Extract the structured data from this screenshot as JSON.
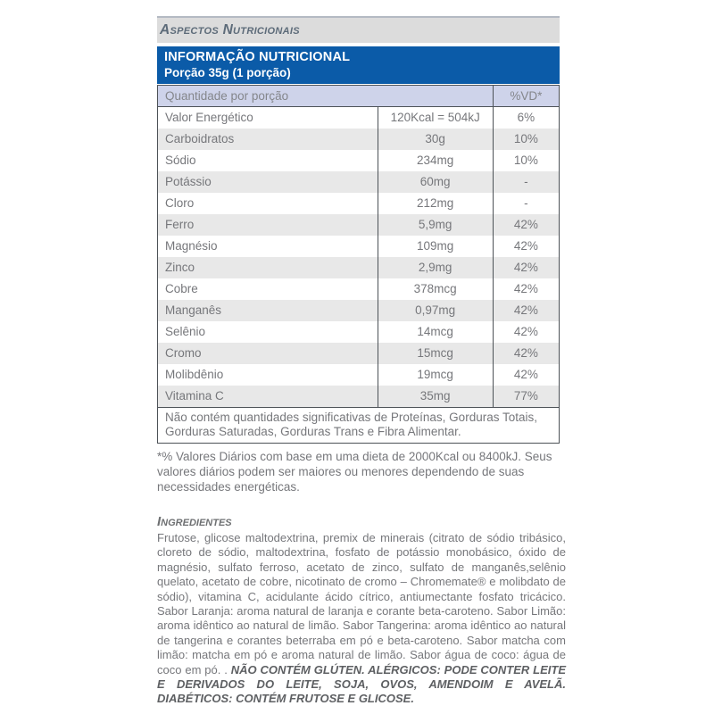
{
  "section_header": {
    "title": "Aspectos Nutricionais"
  },
  "nutrition_table": {
    "title": "INFORMAÇÃO NUTRICIONAL",
    "subtitle": "Porção 35g (1 porção)",
    "columns": {
      "quantity_header": "Quantidade por porção",
      "dv_header": "%VD*"
    },
    "rows": [
      {
        "label": "Valor Energético",
        "amount": "120Kcal = 504kJ",
        "dv": "6%"
      },
      {
        "label": "Carboidratos",
        "amount": "30g",
        "dv": "10%"
      },
      {
        "label": "Sódio",
        "amount": "234mg",
        "dv": "10%"
      },
      {
        "label": "Potássio",
        "amount": "60mg",
        "dv": "-"
      },
      {
        "label": "Cloro",
        "amount": "212mg",
        "dv": "-"
      },
      {
        "label": "Ferro",
        "amount": "5,9mg",
        "dv": "42%"
      },
      {
        "label": "Magnésio",
        "amount": "109mg",
        "dv": "42%"
      },
      {
        "label": "Zinco",
        "amount": "2,9mg",
        "dv": "42%"
      },
      {
        "label": "Cobre",
        "amount": "378mcg",
        "dv": "42%"
      },
      {
        "label": "Manganês",
        "amount": "0,97mg",
        "dv": "42%"
      },
      {
        "label": "Selênio",
        "amount": "14mcg",
        "dv": "42%"
      },
      {
        "label": "Cromo",
        "amount": "15mcg",
        "dv": "42%"
      },
      {
        "label": "Molibdênio",
        "amount": "19mcg",
        "dv": "42%"
      },
      {
        "label": "Vitamina C",
        "amount": "35mg",
        "dv": "77%"
      }
    ],
    "footnote": "Não contém quantidades significativas de Proteínas, Gorduras Totais, Gorduras Saturadas, Gorduras Trans e Fibra Alimentar."
  },
  "daily_values_note": "*% Valores Diários com base em uma dieta de 2000Kcal ou 8400kJ. Seus valores diários podem ser maiores ou menores dependendo de suas necessidades energéticas.",
  "ingredients": {
    "title": "Ingredientes",
    "text": "Frutose, glicose maltodextrina, premix de minerais (citrato de sódio tribásico, cloreto de sódio, maltodextrina, fosfato de potássio monobásico, óxido de magnésio, sulfato ferroso, acetato de zinco, sulfato de manganês,selênio quelato, acetato de cobre, nicotinato de cromo – Chromemate® e molibdato de sódio), vitamina C, acidulante ácido cítrico, antiumectante fosfato tricácico. Sabor Laranja: aroma natural de laranja e corante beta-caroteno. Sabor Limão: aroma idêntico ao natural de limão. Sabor Tangerina: aroma idêntico ao natural de tangerina e corantes beterraba em pó e beta-caroteno. Sabor matcha com limão: matcha em pó e aroma natural de limão. Sabor água de coco: água de coco em pó. . ",
    "allergen_text": "NÃO CONTÉM GLÚTEN. ALÉRGICOS: PODE CONTER LEITE E DERIVADOS DO LEITE, SOJA, OVOS, AMENDOIM E AVELÃ. DIABÉTICOS: CONTÉM FRUTOSE E GLICOSE."
  },
  "colors": {
    "band_blue": "#0b5ba8",
    "header_lavender": "#ced3ea",
    "zebra_gray": "#e8e8e8",
    "strip_gray": "#dcdcdc",
    "border_gray": "#4d5257",
    "text_gray": "#76777b"
  }
}
